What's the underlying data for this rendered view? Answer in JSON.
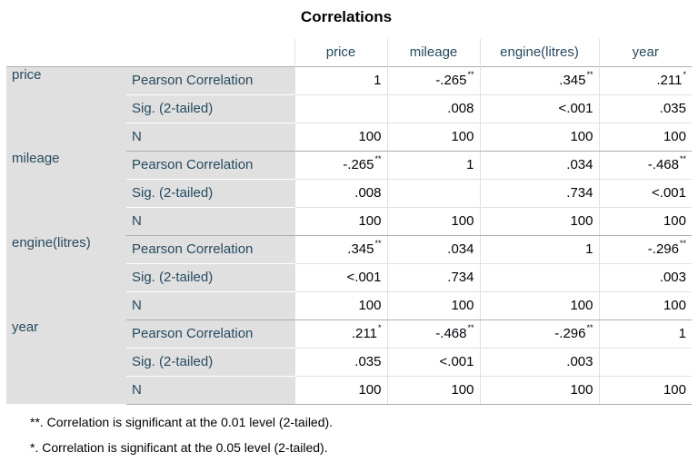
{
  "title": "Correlations",
  "columns": [
    "price",
    "mileage",
    "engine(litres)",
    "year"
  ],
  "rows": [
    {
      "variable": "price",
      "stats": [
        {
          "label": "Pearson Correlation",
          "values": [
            {
              "v": "1",
              "sig": ""
            },
            {
              "v": "-.265",
              "sig": "**"
            },
            {
              "v": ".345",
              "sig": "**"
            },
            {
              "v": ".211",
              "sig": "*"
            }
          ]
        },
        {
          "label": "Sig. (2-tailed)",
          "values": [
            {
              "v": "",
              "sig": ""
            },
            {
              "v": ".008",
              "sig": ""
            },
            {
              "v": "<.001",
              "sig": ""
            },
            {
              "v": ".035",
              "sig": ""
            }
          ]
        },
        {
          "label": "N",
          "values": [
            {
              "v": "100",
              "sig": ""
            },
            {
              "v": "100",
              "sig": ""
            },
            {
              "v": "100",
              "sig": ""
            },
            {
              "v": "100",
              "sig": ""
            }
          ]
        }
      ]
    },
    {
      "variable": "mileage",
      "stats": [
        {
          "label": "Pearson Correlation",
          "values": [
            {
              "v": "-.265",
              "sig": "**"
            },
            {
              "v": "1",
              "sig": ""
            },
            {
              "v": ".034",
              "sig": ""
            },
            {
              "v": "-.468",
              "sig": "**"
            }
          ]
        },
        {
          "label": "Sig. (2-tailed)",
          "values": [
            {
              "v": ".008",
              "sig": ""
            },
            {
              "v": "",
              "sig": ""
            },
            {
              "v": ".734",
              "sig": ""
            },
            {
              "v": "<.001",
              "sig": ""
            }
          ]
        },
        {
          "label": "N",
          "values": [
            {
              "v": "100",
              "sig": ""
            },
            {
              "v": "100",
              "sig": ""
            },
            {
              "v": "100",
              "sig": ""
            },
            {
              "v": "100",
              "sig": ""
            }
          ]
        }
      ]
    },
    {
      "variable": "engine(litres)",
      "stats": [
        {
          "label": "Pearson Correlation",
          "values": [
            {
              "v": ".345",
              "sig": "**"
            },
            {
              "v": ".034",
              "sig": ""
            },
            {
              "v": "1",
              "sig": ""
            },
            {
              "v": "-.296",
              "sig": "**"
            }
          ]
        },
        {
          "label": "Sig. (2-tailed)",
          "values": [
            {
              "v": "<.001",
              "sig": ""
            },
            {
              "v": ".734",
              "sig": ""
            },
            {
              "v": "",
              "sig": ""
            },
            {
              "v": ".003",
              "sig": ""
            }
          ]
        },
        {
          "label": "N",
          "values": [
            {
              "v": "100",
              "sig": ""
            },
            {
              "v": "100",
              "sig": ""
            },
            {
              "v": "100",
              "sig": ""
            },
            {
              "v": "100",
              "sig": ""
            }
          ]
        }
      ]
    },
    {
      "variable": "year",
      "stats": [
        {
          "label": "Pearson Correlation",
          "values": [
            {
              "v": ".211",
              "sig": "*"
            },
            {
              "v": "-.468",
              "sig": "**"
            },
            {
              "v": "-.296",
              "sig": "**"
            },
            {
              "v": "1",
              "sig": ""
            }
          ]
        },
        {
          "label": "Sig. (2-tailed)",
          "values": [
            {
              "v": ".035",
              "sig": ""
            },
            {
              "v": "<.001",
              "sig": ""
            },
            {
              "v": ".003",
              "sig": ""
            },
            {
              "v": "",
              "sig": ""
            }
          ]
        },
        {
          "label": "N",
          "values": [
            {
              "v": "100",
              "sig": ""
            },
            {
              "v": "100",
              "sig": ""
            },
            {
              "v": "100",
              "sig": ""
            },
            {
              "v": "100",
              "sig": ""
            }
          ]
        }
      ]
    }
  ],
  "footnotes": [
    "**. Correlation is significant at the 0.01 level (2-tailed).",
    "*. Correlation is significant at the 0.05 level (2-tailed)."
  ],
  "colors": {
    "header_text": "#264a60",
    "label_background": "#e0e0e0",
    "value_text": "#010205"
  }
}
